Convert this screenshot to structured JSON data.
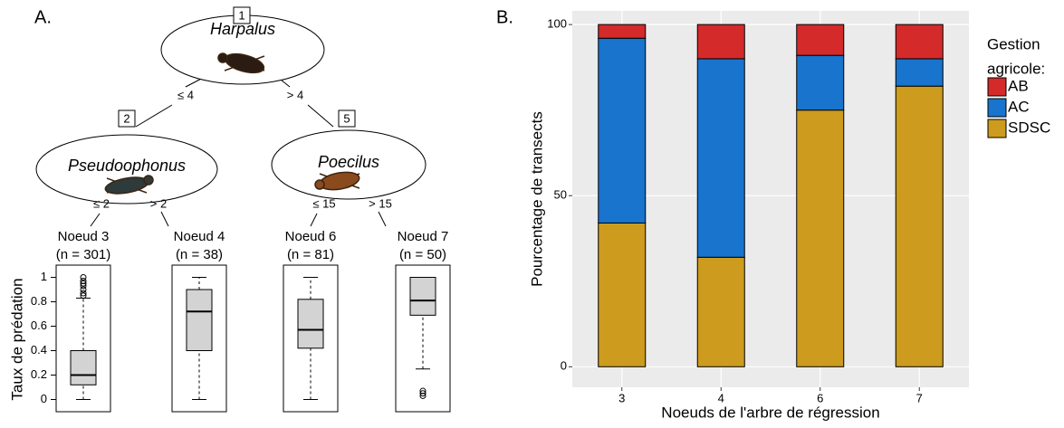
{
  "panel_a": {
    "label": "A.",
    "tree": {
      "nodes": [
        {
          "id": "1",
          "taxon": "Harpalus"
        },
        {
          "id": "2",
          "taxon": "Pseudoophonus"
        },
        {
          "id": "5",
          "taxon": "Poecilus"
        }
      ],
      "edges": [
        "≤ 4",
        "> 4",
        "≤ 2",
        "> 2",
        "≤ 15",
        "> 15"
      ],
      "leaves": [
        {
          "name": "Noeud 3",
          "n": "(n = 301)"
        },
        {
          "name": "Noeud 4",
          "n": "(n = 38)"
        },
        {
          "name": "Noeud 6",
          "n": "(n = 81)"
        },
        {
          "name": "Noeud 7",
          "n": "(n = 50)"
        }
      ]
    }
  },
  "panel_b": {
    "label": "B."
  },
  "chart_data": [
    {
      "type": "box",
      "ylabel": "Taux de prédation",
      "ylim": [
        -0.1,
        1.1
      ],
      "yticks": [
        0,
        0.2,
        0.4,
        0.6,
        0.8,
        1
      ],
      "color": "#d3d3d3",
      "boxes": [
        {
          "whisker_low": 0,
          "q1": 0.12,
          "median": 0.2,
          "q3": 0.4,
          "whisker_high": 0.83,
          "outliers": [
            0.85,
            0.87,
            0.9,
            0.93,
            0.95,
            0.97,
            1
          ]
        },
        {
          "whisker_low": 0,
          "q1": 0.4,
          "median": 0.72,
          "q3": 0.9,
          "whisker_high": 1,
          "outliers": []
        },
        {
          "whisker_low": 0,
          "q1": 0.42,
          "median": 0.57,
          "q3": 0.82,
          "whisker_high": 1,
          "outliers": []
        },
        {
          "whisker_low": 0.25,
          "q1": 0.69,
          "median": 0.81,
          "q3": 1,
          "whisker_high": 1,
          "outliers": [
            0.03,
            0.05,
            0.07
          ]
        }
      ]
    },
    {
      "type": "stacked-bar",
      "xlabel": "Noeuds de l'arbre de régression",
      "ylabel": "Pourcentage de transects",
      "categories": [
        "3",
        "4",
        "6",
        "7"
      ],
      "ylim": [
        -6,
        104
      ],
      "yticks": [
        0,
        50,
        100
      ],
      "grid": true,
      "legend_title": [
        "Gestion",
        "agricole:"
      ],
      "series": [
        {
          "name": "SDSC",
          "color": "#cd9b1d",
          "values": [
            42,
            32,
            75,
            82
          ]
        },
        {
          "name": "AC",
          "color": "#1874cd",
          "values": [
            54,
            58,
            16,
            8
          ]
        },
        {
          "name": "AB",
          "color": "#d42a2a",
          "values": [
            4,
            10,
            9,
            10
          ]
        }
      ]
    }
  ]
}
